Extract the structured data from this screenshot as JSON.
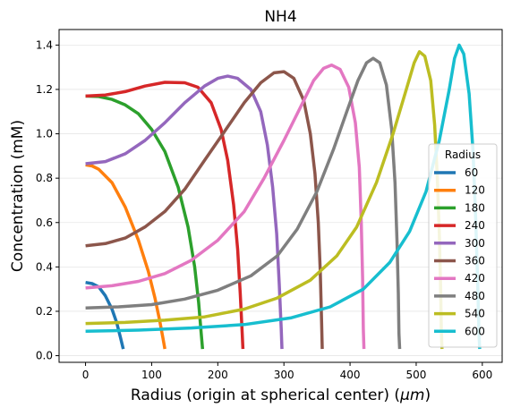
{
  "chart_data": {
    "type": "line",
    "title": "NH4",
    "xlabel": "Radius (origin at spherical center) (",
    "xlabel_unit": "μm",
    "xlabel_close": ")",
    "ylabel": "Concentration (mM)",
    "xlim": [
      -40,
      630
    ],
    "ylim": [
      -0.03,
      1.47
    ],
    "xticks": [
      0,
      100,
      200,
      300,
      400,
      500,
      600
    ],
    "yticks": [
      0.0,
      0.2,
      0.4,
      0.6,
      0.8,
      1.0,
      1.2,
      1.4
    ],
    "ytick_labels": [
      "0.0",
      "0.2",
      "0.4",
      "0.6",
      "0.8",
      "1.0",
      "1.2",
      "1.4"
    ],
    "grid": "y",
    "legend": {
      "title": "Radius",
      "placement": "right"
    },
    "series": [
      {
        "name": "60",
        "color": "#1f77b4",
        "points": [
          [
            0,
            0.33
          ],
          [
            10,
            0.325
          ],
          [
            20,
            0.31
          ],
          [
            30,
            0.27
          ],
          [
            40,
            0.21
          ],
          [
            47,
            0.15
          ],
          [
            53,
            0.08
          ],
          [
            57,
            0.03
          ]
        ]
      },
      {
        "name": "120",
        "color": "#ff7f0e",
        "points": [
          [
            0,
            0.86
          ],
          [
            10,
            0.855
          ],
          [
            20,
            0.84
          ],
          [
            40,
            0.78
          ],
          [
            60,
            0.67
          ],
          [
            80,
            0.52
          ],
          [
            95,
            0.38
          ],
          [
            105,
            0.26
          ],
          [
            112,
            0.16
          ],
          [
            117,
            0.08
          ],
          [
            120,
            0.03
          ]
        ]
      },
      {
        "name": "180",
        "color": "#2ca02c",
        "points": [
          [
            0,
            1.17
          ],
          [
            20,
            1.168
          ],
          [
            40,
            1.155
          ],
          [
            60,
            1.13
          ],
          [
            80,
            1.09
          ],
          [
            100,
            1.02
          ],
          [
            120,
            0.92
          ],
          [
            140,
            0.76
          ],
          [
            155,
            0.58
          ],
          [
            165,
            0.4
          ],
          [
            171,
            0.24
          ],
          [
            175,
            0.1
          ],
          [
            177,
            0.03
          ]
        ]
      },
      {
        "name": "240",
        "color": "#d62728",
        "points": [
          [
            0,
            1.17
          ],
          [
            30,
            1.175
          ],
          [
            60,
            1.19
          ],
          [
            90,
            1.215
          ],
          [
            120,
            1.232
          ],
          [
            150,
            1.23
          ],
          [
            170,
            1.21
          ],
          [
            190,
            1.14
          ],
          [
            205,
            1.02
          ],
          [
            215,
            0.88
          ],
          [
            224,
            0.68
          ],
          [
            230,
            0.48
          ],
          [
            234,
            0.28
          ],
          [
            237,
            0.1
          ],
          [
            238,
            0.03
          ]
        ]
      },
      {
        "name": "300",
        "color": "#9467bd",
        "points": [
          [
            0,
            0.865
          ],
          [
            30,
            0.875
          ],
          [
            60,
            0.91
          ],
          [
            90,
            0.97
          ],
          [
            120,
            1.05
          ],
          [
            150,
            1.14
          ],
          [
            180,
            1.215
          ],
          [
            200,
            1.25
          ],
          [
            215,
            1.26
          ],
          [
            230,
            1.25
          ],
          [
            250,
            1.2
          ],
          [
            265,
            1.1
          ],
          [
            275,
            0.95
          ],
          [
            283,
            0.76
          ],
          [
            289,
            0.55
          ],
          [
            293,
            0.32
          ],
          [
            296,
            0.12
          ],
          [
            297,
            0.03
          ]
        ]
      },
      {
        "name": "360",
        "color": "#8c564b",
        "points": [
          [
            0,
            0.495
          ],
          [
            30,
            0.505
          ],
          [
            60,
            0.53
          ],
          [
            90,
            0.58
          ],
          [
            120,
            0.65
          ],
          [
            150,
            0.75
          ],
          [
            180,
            0.88
          ],
          [
            210,
            1.01
          ],
          [
            240,
            1.14
          ],
          [
            265,
            1.23
          ],
          [
            285,
            1.275
          ],
          [
            300,
            1.28
          ],
          [
            315,
            1.25
          ],
          [
            330,
            1.15
          ],
          [
            340,
            1.0
          ],
          [
            347,
            0.82
          ],
          [
            352,
            0.6
          ],
          [
            355,
            0.38
          ],
          [
            357,
            0.15
          ],
          [
            358,
            0.03
          ]
        ]
      },
      {
        "name": "420",
        "color": "#e377c2",
        "points": [
          [
            0,
            0.305
          ],
          [
            40,
            0.315
          ],
          [
            80,
            0.335
          ],
          [
            120,
            0.37
          ],
          [
            160,
            0.43
          ],
          [
            200,
            0.52
          ],
          [
            240,
            0.65
          ],
          [
            270,
            0.8
          ],
          [
            300,
            0.97
          ],
          [
            325,
            1.12
          ],
          [
            345,
            1.24
          ],
          [
            360,
            1.295
          ],
          [
            372,
            1.31
          ],
          [
            385,
            1.29
          ],
          [
            398,
            1.21
          ],
          [
            408,
            1.05
          ],
          [
            414,
            0.85
          ],
          [
            417,
            0.6
          ],
          [
            419,
            0.35
          ],
          [
            420,
            0.12
          ],
          [
            421,
            0.03
          ]
        ]
      },
      {
        "name": "480",
        "color": "#7f7f7f",
        "points": [
          [
            0,
            0.215
          ],
          [
            50,
            0.22
          ],
          [
            100,
            0.23
          ],
          [
            150,
            0.255
          ],
          [
            200,
            0.295
          ],
          [
            250,
            0.36
          ],
          [
            290,
            0.45
          ],
          [
            320,
            0.57
          ],
          [
            350,
            0.74
          ],
          [
            375,
            0.93
          ],
          [
            395,
            1.1
          ],
          [
            412,
            1.24
          ],
          [
            425,
            1.32
          ],
          [
            435,
            1.34
          ],
          [
            445,
            1.32
          ],
          [
            455,
            1.22
          ],
          [
            463,
            1.02
          ],
          [
            468,
            0.78
          ],
          [
            471,
            0.52
          ],
          [
            473,
            0.28
          ],
          [
            474,
            0.1
          ],
          [
            475,
            0.03
          ]
        ]
      },
      {
        "name": "540",
        "color": "#bcbd22",
        "points": [
          [
            0,
            0.145
          ],
          [
            60,
            0.15
          ],
          [
            120,
            0.16
          ],
          [
            180,
            0.175
          ],
          [
            240,
            0.21
          ],
          [
            290,
            0.26
          ],
          [
            340,
            0.34
          ],
          [
            380,
            0.45
          ],
          [
            410,
            0.58
          ],
          [
            440,
            0.78
          ],
          [
            465,
            1.0
          ],
          [
            485,
            1.2
          ],
          [
            497,
            1.32
          ],
          [
            505,
            1.37
          ],
          [
            513,
            1.35
          ],
          [
            522,
            1.24
          ],
          [
            528,
            1.04
          ],
          [
            532,
            0.8
          ],
          [
            535,
            0.55
          ],
          [
            537,
            0.3
          ],
          [
            538,
            0.12
          ],
          [
            539,
            0.03
          ]
        ]
      },
      {
        "name": "600",
        "color": "#17becf",
        "points": [
          [
            0,
            0.11
          ],
          [
            80,
            0.115
          ],
          [
            160,
            0.125
          ],
          [
            240,
            0.14
          ],
          [
            310,
            0.17
          ],
          [
            370,
            0.22
          ],
          [
            420,
            0.3
          ],
          [
            460,
            0.42
          ],
          [
            490,
            0.56
          ],
          [
            515,
            0.74
          ],
          [
            535,
            0.97
          ],
          [
            550,
            1.2
          ],
          [
            558,
            1.34
          ],
          [
            565,
            1.4
          ],
          [
            572,
            1.36
          ],
          [
            580,
            1.18
          ],
          [
            586,
            0.92
          ],
          [
            590,
            0.62
          ],
          [
            593,
            0.32
          ],
          [
            595,
            0.1
          ],
          [
            596,
            0.03
          ]
        ]
      }
    ]
  }
}
